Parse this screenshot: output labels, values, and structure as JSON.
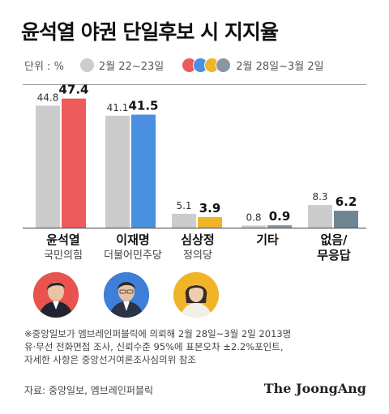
{
  "title": "윤석열 야권 단일후보 시 지지율",
  "legend": {
    "unit": "단위 : %",
    "previous": "2월 22~23일",
    "current": "2월 28일~3월 2일"
  },
  "colors": {
    "previous": "#cccccc",
    "candidates": [
      "#ef5b5b",
      "#4a90e2",
      "#f0b429",
      "#8a97a0",
      "#6f8591"
    ]
  },
  "chart_data": {
    "type": "bar",
    "categories": [
      "윤석열",
      "이재명",
      "심상정",
      "기타",
      "없음/무응답"
    ],
    "series": [
      {
        "name": "2월 22~23일",
        "values": [
          44.8,
          41.1,
          5.1,
          0.8,
          8.3
        ]
      },
      {
        "name": "2월 28일~3월 2일",
        "values": [
          47.4,
          41.5,
          3.9,
          0.9,
          6.2
        ]
      }
    ],
    "ylim": [
      0,
      50
    ]
  },
  "candidates": [
    {
      "name": "윤석열",
      "party": "국민의힘",
      "avatar": "yoon-photo"
    },
    {
      "name": "이재명",
      "party": "더불어민주당",
      "avatar": "lee-photo"
    },
    {
      "name": "심상정",
      "party": "정의당",
      "avatar": "sim-photo"
    },
    {
      "name": "기타",
      "party": ""
    },
    {
      "name": "없음/",
      "name2": "무응답",
      "party": ""
    }
  ],
  "footnote": {
    "line1": "※중앙일보가 엠브레인퍼블릭에 의뢰해 2월 28일~3월 2일 2013명",
    "line2": "유·무선 전화면접 조사, 신뢰수준 95%에 표본오차 ±2.2%포인트,",
    "line3": "자세한 사항은 중앙선거여론조사심의위 참조"
  },
  "source": "자료: 중앙일보, 엠브레인퍼블릭",
  "brand": "The JoongAng"
}
